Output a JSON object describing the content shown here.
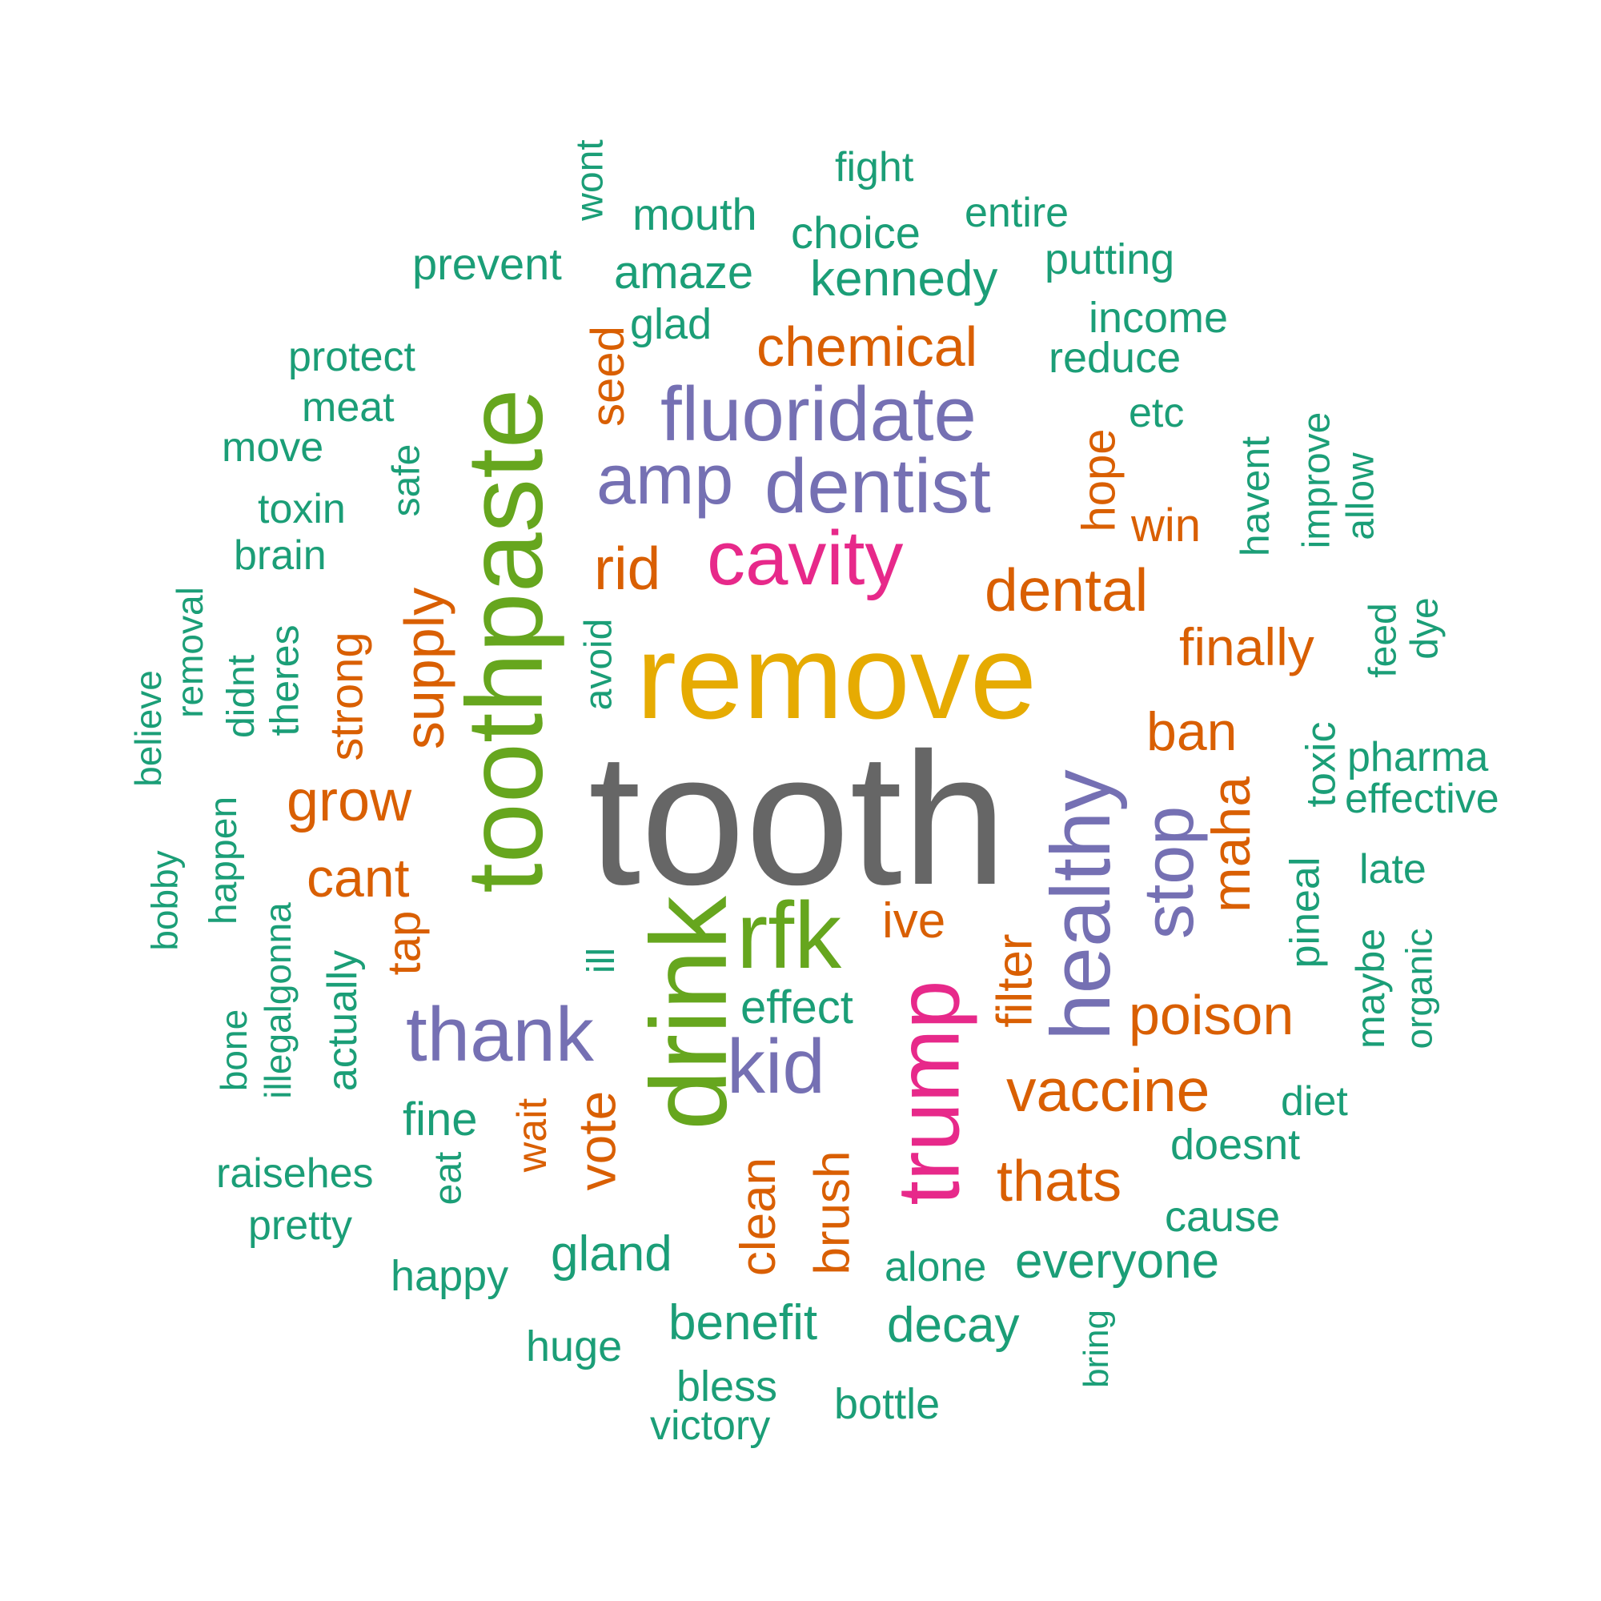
{
  "palette": {
    "gray": "#666666",
    "yellow": "#E6AB02",
    "green": "#66A61E",
    "purple": "#7570B3",
    "pink": "#E7298A",
    "orange": "#D95F02",
    "teal": "#1B9E77"
  },
  "words": [
    {
      "text": "tooth",
      "color": "gray",
      "rank": 1
    },
    {
      "text": "remove",
      "color": "yellow",
      "rank": 2
    },
    {
      "text": "toothpaste",
      "color": "green",
      "rank": 3
    },
    {
      "text": "drink",
      "color": "green",
      "rank": 4
    },
    {
      "text": "rfk",
      "color": "green",
      "rank": 5
    },
    {
      "text": "trump",
      "color": "pink",
      "rank": 6
    },
    {
      "text": "cavity",
      "color": "pink",
      "rank": 7
    },
    {
      "text": "healthy",
      "color": "purple",
      "rank": 8
    },
    {
      "text": "fluoridate",
      "color": "purple",
      "rank": 9
    },
    {
      "text": "dentist",
      "color": "purple",
      "rank": 10
    },
    {
      "text": "amp",
      "color": "purple",
      "rank": 11
    },
    {
      "text": "thank",
      "color": "purple",
      "rank": 12
    },
    {
      "text": "kid",
      "color": "purple",
      "rank": 13
    },
    {
      "text": "stop",
      "color": "purple",
      "rank": 14
    },
    {
      "text": "vaccine",
      "color": "orange",
      "rank": 15
    },
    {
      "text": "dental",
      "color": "orange",
      "rank": 16
    },
    {
      "text": "chemical",
      "color": "orange",
      "rank": 17
    },
    {
      "text": "poison",
      "color": "orange",
      "rank": 18
    },
    {
      "text": "finally",
      "color": "orange",
      "rank": 19
    },
    {
      "text": "thats",
      "color": "orange",
      "rank": 20
    },
    {
      "text": "supply",
      "color": "orange",
      "rank": 21
    },
    {
      "text": "grow",
      "color": "orange",
      "rank": 22
    },
    {
      "text": "rid",
      "color": "orange",
      "rank": 23
    },
    {
      "text": "maha",
      "color": "orange",
      "rank": 24
    },
    {
      "text": "filter",
      "color": "orange",
      "rank": 25
    },
    {
      "text": "ban",
      "color": "orange",
      "rank": 26
    },
    {
      "text": "cant",
      "color": "orange",
      "rank": 27
    },
    {
      "text": "vote",
      "color": "orange",
      "rank": 28
    },
    {
      "text": "clean",
      "color": "orange",
      "rank": 29
    },
    {
      "text": "brush",
      "color": "orange",
      "rank": 30
    },
    {
      "text": "ive",
      "color": "orange",
      "rank": 31
    },
    {
      "text": "hope",
      "color": "orange",
      "rank": 32
    },
    {
      "text": "win",
      "color": "orange",
      "rank": 33
    },
    {
      "text": "seed",
      "color": "orange",
      "rank": 34
    },
    {
      "text": "strong",
      "color": "orange",
      "rank": 35
    },
    {
      "text": "tap",
      "color": "orange",
      "rank": 36
    },
    {
      "text": "wait",
      "color": "orange",
      "rank": 37
    },
    {
      "text": "kennedy",
      "color": "teal",
      "rank": 38
    },
    {
      "text": "everyone",
      "color": "teal",
      "rank": 39
    },
    {
      "text": "benefit",
      "color": "teal",
      "rank": 40
    },
    {
      "text": "decay",
      "color": "teal",
      "rank": 41
    },
    {
      "text": "gland",
      "color": "teal",
      "rank": 42
    },
    {
      "text": "effect",
      "color": "teal",
      "rank": 43
    },
    {
      "text": "amaze",
      "color": "teal",
      "rank": 44
    },
    {
      "text": "choice",
      "color": "teal",
      "rank": 45
    },
    {
      "text": "mouth",
      "color": "teal",
      "rank": 46
    },
    {
      "text": "prevent",
      "color": "teal",
      "rank": 47
    },
    {
      "text": "putting",
      "color": "teal",
      "rank": 48
    },
    {
      "text": "income",
      "color": "teal",
      "rank": 49
    },
    {
      "text": "reduce",
      "color": "teal",
      "rank": 50
    },
    {
      "text": "glad",
      "color": "teal",
      "rank": 51
    },
    {
      "text": "fine",
      "color": "teal",
      "rank": 52
    },
    {
      "text": "doesnt",
      "color": "teal",
      "rank": 53
    },
    {
      "text": "cause",
      "color": "teal",
      "rank": 54
    },
    {
      "text": "happy",
      "color": "teal",
      "rank": 55
    },
    {
      "text": "huge",
      "color": "teal",
      "rank": 56
    },
    {
      "text": "bless",
      "color": "teal",
      "rank": 57
    },
    {
      "text": "bottle",
      "color": "teal",
      "rank": 58
    },
    {
      "text": "alone",
      "color": "teal",
      "rank": 59
    },
    {
      "text": "victory",
      "color": "teal",
      "rank": 60
    },
    {
      "text": "fight",
      "color": "teal",
      "rank": 61
    },
    {
      "text": "entire",
      "color": "teal",
      "rank": 62
    },
    {
      "text": "protect",
      "color": "teal",
      "rank": 63
    },
    {
      "text": "meat",
      "color": "teal",
      "rank": 64
    },
    {
      "text": "move",
      "color": "teal",
      "rank": 65
    },
    {
      "text": "toxin",
      "color": "teal",
      "rank": 66
    },
    {
      "text": "brain",
      "color": "teal",
      "rank": 67
    },
    {
      "text": "etc",
      "color": "teal",
      "rank": 68
    },
    {
      "text": "diet",
      "color": "teal",
      "rank": 69
    },
    {
      "text": "raisehes",
      "color": "teal",
      "rank": 70
    },
    {
      "text": "pretty",
      "color": "teal",
      "rank": 71
    },
    {
      "text": "pharma",
      "color": "teal",
      "rank": 72
    },
    {
      "text": "effective",
      "color": "teal",
      "rank": 73
    },
    {
      "text": "late",
      "color": "teal",
      "rank": 74
    },
    {
      "text": "havent",
      "color": "teal",
      "rank": 75
    },
    {
      "text": "improve",
      "color": "teal",
      "rank": 76
    },
    {
      "text": "allow",
      "color": "teal",
      "rank": 77
    },
    {
      "text": "feed",
      "color": "teal",
      "rank": 78
    },
    {
      "text": "dye",
      "color": "teal",
      "rank": 79
    },
    {
      "text": "toxic",
      "color": "teal",
      "rank": 80
    },
    {
      "text": "pineal",
      "color": "teal",
      "rank": 81
    },
    {
      "text": "maybe",
      "color": "teal",
      "rank": 82
    },
    {
      "text": "organic",
      "color": "teal",
      "rank": 83
    },
    {
      "text": "avoid",
      "color": "teal",
      "rank": 84
    },
    {
      "text": "ill",
      "color": "teal",
      "rank": 85
    },
    {
      "text": "safe",
      "color": "teal",
      "rank": 86
    },
    {
      "text": "wont",
      "color": "teal",
      "rank": 87
    },
    {
      "text": "actually",
      "color": "teal",
      "rank": 88
    },
    {
      "text": "eat",
      "color": "teal",
      "rank": 89
    },
    {
      "text": "illegalgonna",
      "color": "teal",
      "rank": 90
    },
    {
      "text": "bone",
      "color": "teal",
      "rank": 91
    },
    {
      "text": "theres",
      "color": "teal",
      "rank": 92
    },
    {
      "text": "didnt",
      "color": "teal",
      "rank": 93
    },
    {
      "text": "removal",
      "color": "teal",
      "rank": 94
    },
    {
      "text": "believe",
      "color": "teal",
      "rank": 95
    },
    {
      "text": "happen",
      "color": "teal",
      "rank": 96
    },
    {
      "text": "bobby",
      "color": "teal",
      "rank": 97
    },
    {
      "text": "bring",
      "color": "teal",
      "rank": 98
    }
  ]
}
